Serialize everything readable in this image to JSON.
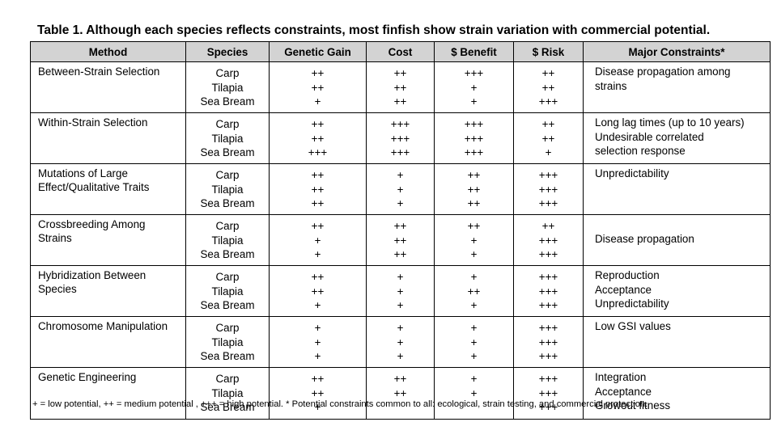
{
  "title": "Table 1. Although each species reflects constraints, most finfish show strain variation with commercial potential.",
  "headers": {
    "method": "Method",
    "species": "Species",
    "gain": "Genetic Gain",
    "cost": "Cost",
    "benefit": "$ Benefit",
    "risk": "$ Risk",
    "constraints": "Major Constraints*"
  },
  "rows": [
    {
      "method": [
        "Between-Strain Selection"
      ],
      "species": [
        "Carp",
        "Tilapia",
        "Sea Bream"
      ],
      "gain": [
        "++",
        "++",
        "+"
      ],
      "cost": [
        "++",
        "++",
        "++"
      ],
      "benefit": [
        "+++",
        "+",
        "+"
      ],
      "risk": [
        "++",
        "++",
        "+++"
      ],
      "constraints": [
        "Disease propagation among",
        "strains"
      ]
    },
    {
      "method": [
        "Within-Strain Selection"
      ],
      "species": [
        "Carp",
        "Tilapia",
        "Sea Bream"
      ],
      "gain": [
        "++",
        "++",
        "+++"
      ],
      "cost": [
        "+++",
        "+++",
        "+++"
      ],
      "benefit": [
        "+++",
        "+++",
        "+++"
      ],
      "risk": [
        "++",
        "++",
        "+"
      ],
      "constraints": [
        "Long lag times (up to 10 years)",
        "Undesirable correlated",
        "selection response"
      ]
    },
    {
      "method": [
        "Mutations of Large",
        "Effect/Qualitative Traits"
      ],
      "species": [
        "Carp",
        "Tilapia",
        "Sea Bream"
      ],
      "gain": [
        "++",
        "++",
        "++"
      ],
      "cost": [
        "+",
        "+",
        "+"
      ],
      "benefit": [
        "++",
        "++",
        "++"
      ],
      "risk": [
        "+++",
        "+++",
        "+++"
      ],
      "constraints": [
        "Unpredictability"
      ]
    },
    {
      "method": [
        "Crossbreeding Among",
        "Strains"
      ],
      "species": [
        "Carp",
        "Tilapia",
        "Sea Bream"
      ],
      "gain": [
        "++",
        "+",
        "+"
      ],
      "cost": [
        "++",
        "++",
        "++"
      ],
      "benefit": [
        "++",
        "+",
        "+"
      ],
      "risk": [
        "++",
        "+++",
        "+++"
      ],
      "constraints": [
        "",
        "Disease propagation"
      ]
    },
    {
      "method": [
        "Hybridization Between",
        "Species"
      ],
      "species": [
        "Carp",
        "Tilapia",
        "Sea Bream"
      ],
      "gain": [
        "++",
        "++",
        "+"
      ],
      "cost": [
        "+",
        "+",
        "+"
      ],
      "benefit": [
        "+",
        "++",
        "+"
      ],
      "risk": [
        "+++",
        "+++",
        "+++"
      ],
      "constraints": [
        "Reproduction",
        "Acceptance",
        "Unpredictability"
      ]
    },
    {
      "method": [
        "Chromosome Manipulation"
      ],
      "species": [
        "Carp",
        "Tilapia",
        "Sea Bream"
      ],
      "gain": [
        "+",
        "+",
        "+"
      ],
      "cost": [
        "+",
        "+",
        "+"
      ],
      "benefit": [
        "+",
        "+",
        "+"
      ],
      "risk": [
        "+++",
        "+++",
        "+++"
      ],
      "constraints": [
        "Low GSI values"
      ]
    },
    {
      "method": [
        "Genetic Engineering"
      ],
      "species": [
        "Carp",
        "Tilapia",
        "Sea Bream"
      ],
      "gain": [
        "++",
        "++",
        "+"
      ],
      "cost": [
        "++",
        "++",
        ""
      ],
      "benefit": [
        "+",
        "+",
        ""
      ],
      "risk": [
        "+++",
        "+++",
        "+++"
      ],
      "constraints": [
        "Integration",
        "Acceptance",
        "Growout fitness"
      ]
    }
  ],
  "footnote": "+ = low potential, ++ = medium potential , +++ = high potential. * Potential constraints common to all: ecological, strain testing, and commercial protection."
}
